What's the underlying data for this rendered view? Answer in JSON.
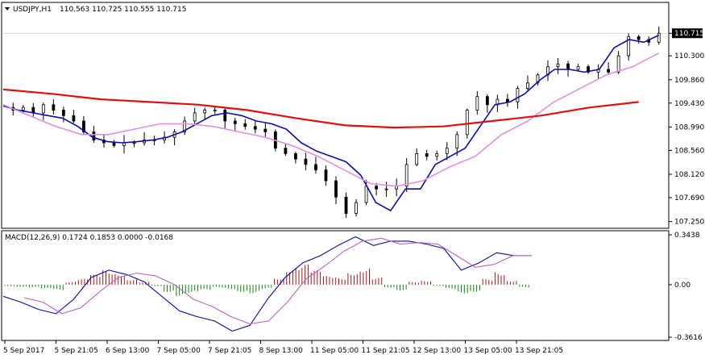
{
  "colors": {
    "background": "#ffffff",
    "border": "#000000",
    "candle": "#000000",
    "ma_fast": "#0b0bb0",
    "ma_mid": "#e28ee2",
    "ma_slow": "#e01010",
    "macd_pos": "#b01010",
    "macd_neg": "#0a8a0a",
    "macd_line": "#0b0bb0",
    "signal_line": "#c060c0",
    "price_tag_bg": "#000000",
    "price_tag_fg": "#ffffff"
  },
  "header": {
    "arrow_icon": "triangle-down-icon",
    "symbol": "USDJPY,H1",
    "ohlc": "110.563 110.725 110.555 110.715"
  },
  "chart_data": [
    {
      "type": "candlestick",
      "title": "USDJPY,H1",
      "ohlc_text": "110.563 110.725 110.555 110.715",
      "ylim": [
        107.17,
        111.06
      ],
      "y_ticks": [
        "110.715",
        "110.300",
        "109.860",
        "109.430",
        "108.990",
        "108.560",
        "108.120",
        "107.690",
        "107.250"
      ],
      "current_price": 110.715,
      "x_ticks": [
        "5 Sep 2017",
        "5 Sep 21:05",
        "6 Sep 13:00",
        "7 Sep 05:00",
        "7 Sep 21:05",
        "8 Sep 13:00",
        "11 Sep 05:00",
        "11 Sep 21:05",
        "12 Sep 13:00",
        "13 Sep 05:00",
        "13 Sep 21:05"
      ],
      "close_series": [
        109.3,
        109.35,
        109.25,
        109.4,
        109.3,
        109.2,
        109.1,
        108.9,
        108.75,
        108.7,
        108.65,
        108.7,
        108.7,
        108.75,
        108.75,
        108.8,
        108.9,
        109.1,
        109.25,
        109.3,
        109.3,
        109.1,
        109.05,
        109.0,
        108.95,
        108.9,
        108.6,
        108.5,
        108.4,
        108.3,
        108.2,
        108.0,
        107.7,
        107.4,
        107.6,
        107.9,
        107.85,
        107.85,
        107.9,
        108.3,
        108.5,
        108.45,
        108.5,
        108.6,
        108.85,
        109.3,
        109.55,
        109.4,
        109.5,
        109.45,
        109.7,
        109.8,
        109.95,
        110.1,
        110.15,
        110.05,
        110.1,
        110.0,
        110.05,
        110.0,
        110.3,
        110.65,
        110.6,
        110.55,
        110.715
      ],
      "series": [
        {
          "name": "MA fast",
          "values": [
            109.38,
            109.3,
            109.25,
            109.2,
            109.15,
            109.0,
            108.8,
            108.72,
            108.7,
            108.72,
            108.75,
            108.8,
            108.9,
            109.05,
            109.2,
            109.25,
            109.2,
            109.1,
            109.05,
            108.95,
            108.7,
            108.55,
            108.45,
            108.35,
            108.1,
            107.6,
            107.45,
            107.85,
            107.85,
            108.3,
            108.45,
            108.6,
            109.0,
            109.4,
            109.45,
            109.6,
            109.85,
            110.05,
            110.05,
            110.0,
            110.05,
            110.45,
            110.6,
            110.55,
            110.68
          ]
        },
        {
          "name": "MA mid",
          "values": [
            109.4,
            109.2,
            109.0,
            108.85,
            108.85,
            108.95,
            109.05,
            109.05,
            109.0,
            108.9,
            108.8,
            108.65,
            108.45,
            108.2,
            107.95,
            107.9,
            108.0,
            108.25,
            108.45,
            108.85,
            109.1,
            109.45,
            109.7,
            109.95,
            110.1,
            110.35
          ]
        },
        {
          "name": "MA slow",
          "values": [
            109.68,
            109.6,
            109.5,
            109.45,
            109.4,
            109.3,
            109.15,
            109.02,
            108.98,
            109.0,
            109.1,
            109.2,
            109.35,
            109.45
          ]
        }
      ]
    },
    {
      "type": "bar+line",
      "title": "MACD(12,26,9) 0.1724 0.1853 0.0000 -0.0168",
      "ylim": [
        -0.3616,
        0.3438
      ],
      "y_ticks": [
        "0.3438",
        "0.00",
        "-0.3616"
      ],
      "histogram": [
        -0.01,
        -0.015,
        -0.02,
        -0.03,
        -0.04,
        0.02,
        0.04,
        0.07,
        0.1,
        0.08,
        0.04,
        0.02,
        -0.01,
        -0.05,
        -0.08,
        -0.06,
        -0.04,
        -0.02,
        -0.03,
        -0.05,
        -0.06,
        -0.03,
        0.05,
        0.12,
        0.14,
        0.1,
        0.06,
        0.05,
        0.09,
        0.12,
        0.05,
        -0.02,
        -0.04,
        0.02,
        0.03,
        -0.01,
        -0.03,
        -0.06,
        -0.05,
        0.04,
        0.09,
        0.03,
        -0.02
      ],
      "series": [
        {
          "name": "MACD",
          "values": [
            -0.08,
            -0.12,
            -0.17,
            -0.2,
            -0.1,
            0.05,
            0.1,
            0.07,
            0.02,
            -0.08,
            -0.18,
            -0.22,
            -0.25,
            -0.32,
            -0.28,
            -0.1,
            0.05,
            0.15,
            0.2,
            0.27,
            0.33,
            0.27,
            0.3,
            0.3,
            0.28,
            0.25,
            0.1,
            0.15,
            0.22,
            0.2,
            0.2
          ]
        },
        {
          "name": "Signal",
          "values": [
            -0.09,
            -0.12,
            -0.2,
            -0.16,
            -0.05,
            0.05,
            0.08,
            0.06,
            0.0,
            -0.1,
            -0.15,
            -0.22,
            -0.27,
            -0.25,
            -0.12,
            0.04,
            0.13,
            0.23,
            0.3,
            0.32,
            0.28,
            0.29,
            0.28,
            0.2,
            0.12,
            0.14,
            0.2,
            0.2
          ]
        }
      ]
    }
  ]
}
